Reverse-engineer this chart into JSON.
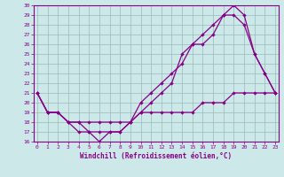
{
  "xlabel": "Windchill (Refroidissement éolien,°C)",
  "bg_color": "#cce8e8",
  "line_color": "#880088",
  "grid_color": "#99bbbb",
  "xlim": [
    0,
    23
  ],
  "ylim": [
    16,
    30
  ],
  "xticks": [
    0,
    1,
    2,
    3,
    4,
    5,
    6,
    7,
    8,
    9,
    10,
    11,
    12,
    13,
    14,
    15,
    16,
    17,
    18,
    19,
    20,
    21,
    22,
    23
  ],
  "yticks": [
    16,
    17,
    18,
    19,
    20,
    21,
    22,
    23,
    24,
    25,
    26,
    27,
    28,
    29,
    30
  ],
  "line1_x": [
    0,
    1,
    2,
    3,
    4,
    5,
    6,
    7,
    8,
    9,
    10,
    11,
    12,
    13,
    14,
    15,
    16,
    17,
    18,
    19,
    20,
    21,
    22,
    23
  ],
  "line1_y": [
    21,
    19,
    19,
    18,
    17,
    17,
    16,
    17,
    17,
    18,
    20,
    21,
    22,
    23,
    24,
    26,
    26,
    27,
    29,
    30,
    29,
    25,
    23,
    21
  ],
  "line2_x": [
    0,
    1,
    2,
    3,
    4,
    5,
    6,
    7,
    8,
    9,
    10,
    11,
    12,
    13,
    14,
    15,
    16,
    17,
    18,
    19,
    20,
    21,
    22,
    23
  ],
  "line2_y": [
    21,
    19,
    19,
    18,
    18,
    17,
    17,
    17,
    17,
    18,
    19,
    20,
    21,
    22,
    25,
    26,
    27,
    28,
    29,
    29,
    28,
    25,
    23,
    21
  ],
  "line3_x": [
    0,
    1,
    2,
    3,
    4,
    5,
    6,
    7,
    8,
    9,
    10,
    11,
    12,
    13,
    14,
    15,
    16,
    17,
    18,
    19,
    20,
    21,
    22,
    23
  ],
  "line3_y": [
    21,
    19,
    19,
    18,
    18,
    18,
    18,
    18,
    18,
    18,
    19,
    19,
    19,
    19,
    19,
    19,
    20,
    20,
    20,
    21,
    21,
    21,
    21,
    21
  ]
}
